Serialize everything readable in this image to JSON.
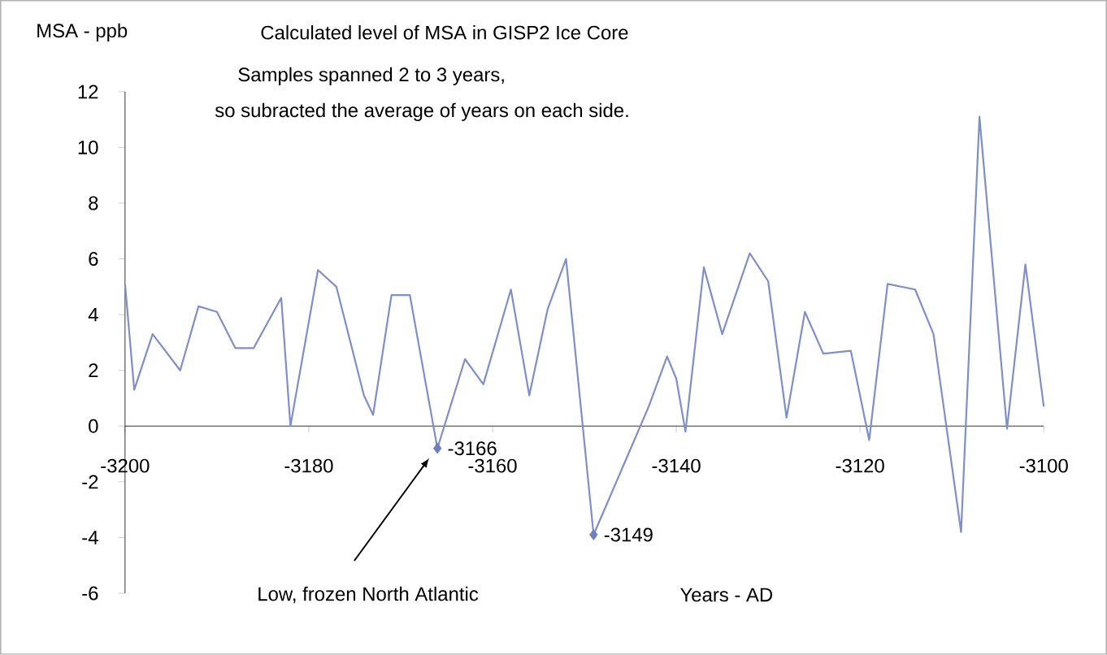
{
  "chart_data": {
    "type": "line",
    "title": "Calculated level of MSA in GISP2 Ice Core",
    "ylabel": "MSA - ppb",
    "xlabel": "Years - AD",
    "annotations": [
      "Samples spanned 2 to 3 years,",
      "so subracted the average of years on each side.",
      {
        "text": "-3166",
        "x": -3166,
        "y": -0.8
      },
      {
        "text": "-3149",
        "x": -3149,
        "y": -3.9
      },
      "Low, frozen North Atlantic"
    ],
    "xlim": [
      -3200,
      -3100
    ],
    "ylim": [
      -6,
      12
    ],
    "xticks": [
      -3200,
      -3180,
      -3160,
      -3140,
      -3120,
      -3100
    ],
    "yticks": [
      -6,
      -4,
      -2,
      0,
      2,
      4,
      6,
      8,
      10,
      12
    ],
    "series": [
      {
        "color": "#7f8fc8",
        "x": [
          -3200,
          -3199,
          -3197,
          -3194,
          -3192,
          -3190,
          -3188,
          -3186,
          -3183,
          -3182,
          -3179,
          -3177,
          -3174,
          -3173,
          -3171,
          -3169,
          -3166,
          -3163,
          -3161,
          -3158,
          -3156,
          -3154,
          -3152,
          -3149,
          -3143,
          -3141,
          -3140,
          -3139,
          -3137,
          -3135,
          -3132,
          -3130,
          -3128,
          -3126,
          -3124,
          -3121,
          -3119,
          -3117,
          -3114,
          -3112,
          -3109,
          -3107,
          -3104,
          -3102,
          -3100
        ],
        "values": [
          5.1,
          1.3,
          3.3,
          2.0,
          4.3,
          4.1,
          2.8,
          2.8,
          4.6,
          0.0,
          5.6,
          5.0,
          1.1,
          0.4,
          4.7,
          4.7,
          -0.8,
          2.4,
          1.5,
          4.9,
          1.1,
          4.2,
          6.0,
          -3.9,
          0.7,
          2.5,
          1.7,
          -0.2,
          5.7,
          3.3,
          6.2,
          5.2,
          0.3,
          4.1,
          2.6,
          2.7,
          -0.5,
          5.1,
          4.9,
          3.3,
          -3.8,
          11.1,
          -0.1,
          5.8,
          0.7
        ]
      },
      {
        "type": "scatter",
        "color": "#6f80bf",
        "marker": "diamond",
        "x": [
          -3166,
          -3149
        ],
        "values": [
          -0.8,
          -3.9
        ]
      }
    ]
  }
}
